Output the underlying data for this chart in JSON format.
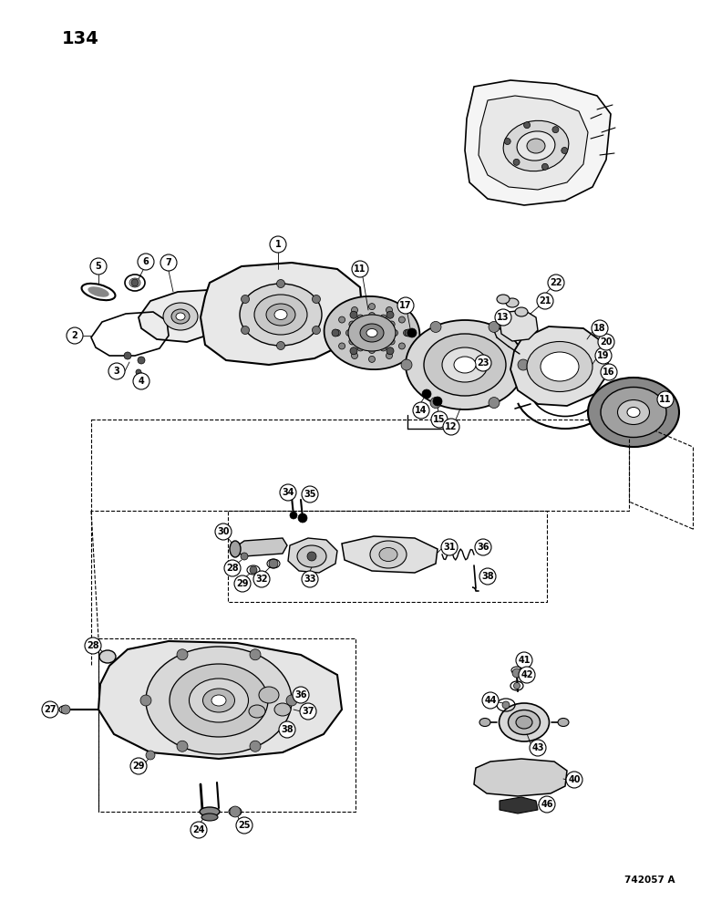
{
  "page_number": "134",
  "catalog_number": "742057 A",
  "background_color": "#ffffff",
  "line_color": "#000000",
  "fig_width": 7.8,
  "fig_height": 10.0,
  "dpi": 100
}
